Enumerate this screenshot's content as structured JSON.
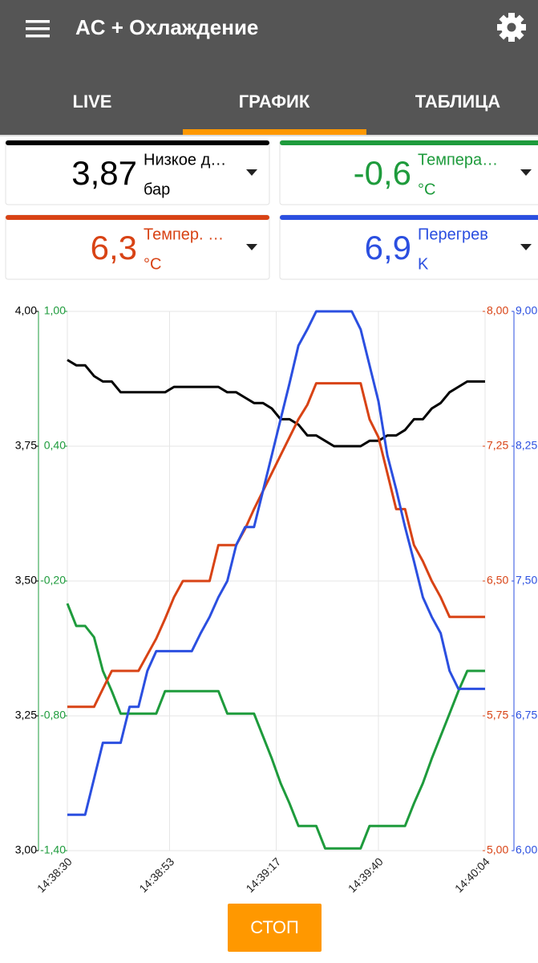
{
  "header": {
    "title": "AC + Охлаждение"
  },
  "tabs": {
    "items": [
      "LIVE",
      "ГРАФИК",
      "ТАБЛИЦА"
    ],
    "selected": 1
  },
  "cards": [
    {
      "value": "3,87",
      "label": "Низкое д…",
      "unit": "бар",
      "color": "#000000"
    },
    {
      "value": "-0,6",
      "label": "Темпера…",
      "unit": "°C",
      "color": "#1e9b3c"
    },
    {
      "value": "6,3",
      "label": "Темпер. …",
      "unit": "°C",
      "color": "#d84315"
    },
    {
      "value": "6,9",
      "label": "Перегрев",
      "unit": "K",
      "color": "#2b4fe0"
    }
  ],
  "chart_data": {
    "type": "line",
    "grid": true,
    "x": [
      "14:38:30",
      "14:38:32",
      "14:38:34",
      "14:38:36",
      "14:38:38",
      "14:38:40",
      "14:38:42",
      "14:38:44",
      "14:38:46",
      "14:38:48",
      "14:38:50",
      "14:38:52",
      "14:38:54",
      "14:38:56",
      "14:38:58",
      "14:39:00",
      "14:39:02",
      "14:39:04",
      "14:39:06",
      "14:39:08",
      "14:39:10",
      "14:39:12",
      "14:39:14",
      "14:39:16",
      "14:39:18",
      "14:39:20",
      "14:39:22",
      "14:39:24",
      "14:39:26",
      "14:39:28",
      "14:39:30",
      "14:39:32",
      "14:39:34",
      "14:39:36",
      "14:39:38",
      "14:39:40",
      "14:39:42",
      "14:39:44",
      "14:39:46",
      "14:39:48",
      "14:39:50",
      "14:39:52",
      "14:39:54",
      "14:39:56",
      "14:39:58",
      "14:40:00",
      "14:40:02",
      "14:40:04"
    ],
    "xlim": [
      "14:38:30",
      "14:40:04"
    ],
    "xticks": [
      "14:38:30",
      "14:38:53",
      "14:39:17",
      "14:39:40",
      "14:40:04"
    ],
    "series": [
      {
        "color": "#1e9b3c",
        "axis_position": "left",
        "ylim": [
          -1.4,
          1
        ],
        "yticks": [
          {
            "value": 1,
            "label": "1,00"
          },
          {
            "value": 0.4,
            "label": "0,40"
          },
          {
            "value": -0.2,
            "label": "-0,20"
          },
          {
            "value": -0.8,
            "label": "-0,80"
          },
          {
            "value": -1.4,
            "label": "-1,40"
          }
        ],
        "values": [
          -0.3,
          -0.4,
          -0.4,
          -0.45,
          -0.6,
          -0.69,
          -0.79,
          -0.79,
          -0.79,
          -0.79,
          -0.79,
          -0.69,
          -0.69,
          -0.69,
          -0.69,
          -0.69,
          -0.69,
          -0.69,
          -0.79,
          -0.79,
          -0.79,
          -0.79,
          -0.89,
          -0.99,
          -1.1,
          -1.19,
          -1.29,
          -1.29,
          -1.29,
          -1.39,
          -1.39,
          -1.39,
          -1.39,
          -1.39,
          -1.29,
          -1.29,
          -1.29,
          -1.29,
          -1.29,
          -1.19,
          -1.1,
          -0.99,
          -0.89,
          -0.79,
          -0.69,
          -0.6,
          -0.6,
          -0.6
        ]
      },
      {
        "color": "#000000",
        "axis_position": "left",
        "ylim": [
          3,
          4
        ],
        "yticks": [
          {
            "value": 4,
            "label": "4,00"
          },
          {
            "value": 3.75,
            "label": "3,75"
          },
          {
            "value": 3.5,
            "label": "3,50"
          },
          {
            "value": 3.25,
            "label": "3,25"
          },
          {
            "value": 3,
            "label": "3,00"
          }
        ],
        "values": [
          3.91,
          3.9,
          3.9,
          3.88,
          3.87,
          3.87,
          3.85,
          3.85,
          3.85,
          3.85,
          3.85,
          3.85,
          3.86,
          3.86,
          3.86,
          3.86,
          3.86,
          3.86,
          3.85,
          3.85,
          3.84,
          3.83,
          3.83,
          3.82,
          3.8,
          3.8,
          3.79,
          3.77,
          3.77,
          3.76,
          3.75,
          3.75,
          3.75,
          3.75,
          3.76,
          3.76,
          3.77,
          3.77,
          3.78,
          3.8,
          3.8,
          3.82,
          3.83,
          3.85,
          3.86,
          3.87,
          3.87,
          3.87
        ]
      },
      {
        "color": "#d84315",
        "axis_position": "right",
        "ylim": [
          5,
          8
        ],
        "yticks": [
          {
            "value": 8,
            "label": "8,00"
          },
          {
            "value": 7.25,
            "label": "7,25"
          },
          {
            "value": 6.5,
            "label": "6,50"
          },
          {
            "value": 5.75,
            "label": "5,75"
          },
          {
            "value": 5,
            "label": "5,00"
          }
        ],
        "values": [
          5.8,
          5.8,
          5.8,
          5.8,
          5.9,
          6,
          6,
          6,
          6,
          6.09,
          6.18,
          6.29,
          6.41,
          6.5,
          6.5,
          6.5,
          6.5,
          6.7,
          6.7,
          6.7,
          6.79,
          6.9,
          7,
          7.1,
          7.2,
          7.3,
          7.4,
          7.48,
          7.6,
          7.6,
          7.6,
          7.6,
          7.6,
          7.6,
          7.4,
          7.3,
          7.1,
          6.9,
          6.9,
          6.7,
          6.61,
          6.5,
          6.41,
          6.3,
          6.3,
          6.3,
          6.3,
          6.3
        ]
      },
      {
        "color": "#2b4fe0",
        "axis_position": "right",
        "ylim": [
          6,
          9
        ],
        "yticks": [
          {
            "value": 9,
            "label": "9,00"
          },
          {
            "value": 8.25,
            "label": "8,25"
          },
          {
            "value": 7.5,
            "label": "7,50"
          },
          {
            "value": 6.75,
            "label": "6,75"
          },
          {
            "value": 6,
            "label": "6,00"
          }
        ],
        "values": [
          6.2,
          6.2,
          6.2,
          6.4,
          6.6,
          6.6,
          6.6,
          6.8,
          6.8,
          7,
          7.11,
          7.11,
          7.11,
          7.11,
          7.11,
          7.21,
          7.3,
          7.41,
          7.5,
          7.7,
          7.8,
          7.8,
          8,
          8.2,
          8.4,
          8.6,
          8.81,
          8.9,
          9,
          9,
          9,
          9,
          9,
          8.9,
          8.7,
          8.5,
          8.2,
          8.01,
          7.8,
          7.61,
          7.41,
          7.3,
          7.21,
          7,
          6.9,
          6.9,
          6.9,
          6.9
        ]
      }
    ]
  },
  "button": {
    "label": "СТОП"
  }
}
